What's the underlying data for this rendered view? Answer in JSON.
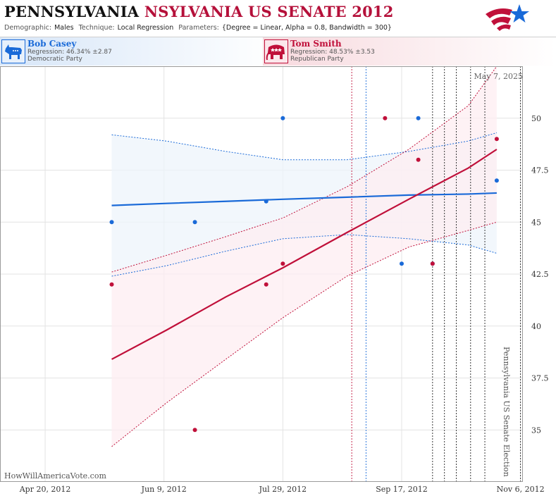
{
  "header": {
    "title_state": "PENNSYLVANIA",
    "title_race": "NSYLVANIA US SENATE 2012",
    "params": [
      {
        "label": "Demographic:",
        "value": "Males"
      },
      {
        "label": "Technique:",
        "value": "Local Regression"
      },
      {
        "label": "Parameters:",
        "value": "{Degree = Linear, Alpha = 0.8, Bandwidth = 300}"
      }
    ]
  },
  "candidates": {
    "dem": {
      "name": "Bob Casey",
      "regression": "Regression: 46.34% ±2.87",
      "party": "Democratic Party",
      "icon": "donkey-icon"
    },
    "rep": {
      "name": "Tom Smith",
      "regression": "Regression: 48.53% ±3.53",
      "party": "Republican Party",
      "icon": "elephant-icon"
    }
  },
  "chart_data": {
    "type": "scatter",
    "date_stamp": "May 7, 2025",
    "watermark": "HowWillAmericaVote.com",
    "election_label": "Pennsylvania US Senate Election",
    "x_tick_labels": [
      "Apr 20, 2012",
      "Jun 9, 2012",
      "Jul 29, 2012",
      "Sep 17, 2012",
      "Nov 6, 2012"
    ],
    "x_tick_dates": [
      "2012-04-20",
      "2012-06-09",
      "2012-07-29",
      "2012-09-17",
      "2012-11-06"
    ],
    "xlim": [
      "2012-04-01",
      "2012-11-07"
    ],
    "ylim": [
      32.5,
      52.5
    ],
    "y_ticks": [
      35,
      37.5,
      40,
      42.5,
      45,
      47.5,
      50
    ],
    "y_tick_labels": [
      "35",
      "37.5",
      "40",
      "42.5",
      "45",
      "47.5",
      "50"
    ],
    "grid": true,
    "colors": {
      "dem": "#1a6ad8",
      "rep": "#c0103a",
      "dem_band": "#eef4fb",
      "rep_band": "#fdeef1"
    },
    "series": [
      {
        "name": "Bob Casey",
        "party": "dem",
        "polls": [
          {
            "date": "2012-05-18",
            "value": 45
          },
          {
            "date": "2012-06-22",
            "value": 45
          },
          {
            "date": "2012-07-22",
            "value": 46
          },
          {
            "date": "2012-07-29",
            "value": 50
          },
          {
            "date": "2012-09-17",
            "value": 43
          },
          {
            "date": "2012-09-24",
            "value": 50
          },
          {
            "date": "2012-09-30",
            "value": 43
          },
          {
            "date": "2012-10-27",
            "value": 47
          }
        ],
        "regression": [
          {
            "date": "2012-05-18",
            "value": 45.8,
            "lower": 42.4,
            "upper": 49.2
          },
          {
            "date": "2012-06-10",
            "value": 45.9,
            "lower": 42.9,
            "upper": 48.9
          },
          {
            "date": "2012-07-05",
            "value": 46.0,
            "lower": 43.6,
            "upper": 48.4
          },
          {
            "date": "2012-07-29",
            "value": 46.1,
            "lower": 44.2,
            "upper": 48.0
          },
          {
            "date": "2012-08-25",
            "value": 46.2,
            "lower": 44.4,
            "upper": 48.0
          },
          {
            "date": "2012-09-20",
            "value": 46.3,
            "lower": 44.2,
            "upper": 48.4
          },
          {
            "date": "2012-10-15",
            "value": 46.35,
            "lower": 43.9,
            "upper": 48.9
          },
          {
            "date": "2012-10-27",
            "value": 46.4,
            "lower": 43.5,
            "upper": 49.3
          }
        ]
      },
      {
        "name": "Tom Smith",
        "party": "rep",
        "polls": [
          {
            "date": "2012-05-18",
            "value": 42
          },
          {
            "date": "2012-06-22",
            "value": 35
          },
          {
            "date": "2012-07-22",
            "value": 42
          },
          {
            "date": "2012-07-29",
            "value": 43
          },
          {
            "date": "2012-09-10",
            "value": 50
          },
          {
            "date": "2012-09-24",
            "value": 48
          },
          {
            "date": "2012-09-30",
            "value": 43
          },
          {
            "date": "2012-10-27",
            "value": 49
          }
        ],
        "regression": [
          {
            "date": "2012-05-18",
            "value": 38.4,
            "lower": 34.2,
            "upper": 42.6
          },
          {
            "date": "2012-06-10",
            "value": 39.8,
            "lower": 36.3,
            "upper": 43.4
          },
          {
            "date": "2012-07-05",
            "value": 41.4,
            "lower": 38.4,
            "upper": 44.3
          },
          {
            "date": "2012-07-29",
            "value": 42.8,
            "lower": 40.4,
            "upper": 45.2
          },
          {
            "date": "2012-08-25",
            "value": 44.5,
            "lower": 42.4,
            "upper": 46.7
          },
          {
            "date": "2012-09-20",
            "value": 46.1,
            "lower": 43.8,
            "upper": 48.5
          },
          {
            "date": "2012-10-15",
            "value": 47.6,
            "lower": 44.6,
            "upper": 50.6
          },
          {
            "date": "2012-10-27",
            "value": 48.5,
            "lower": 45.0,
            "upper": 52.5
          }
        ]
      }
    ],
    "event_lines": [
      {
        "date": "2012-08-27",
        "color": "#c0103a"
      },
      {
        "date": "2012-09-02",
        "color": "#1a6ad8"
      },
      {
        "date": "2012-09-30",
        "color": "#222222"
      },
      {
        "date": "2012-10-05",
        "color": "#222222"
      },
      {
        "date": "2012-10-10",
        "color": "#222222"
      },
      {
        "date": "2012-10-16",
        "color": "#222222"
      },
      {
        "date": "2012-10-22",
        "color": "#222222"
      },
      {
        "date": "2012-11-06",
        "color": "#222222"
      }
    ]
  }
}
